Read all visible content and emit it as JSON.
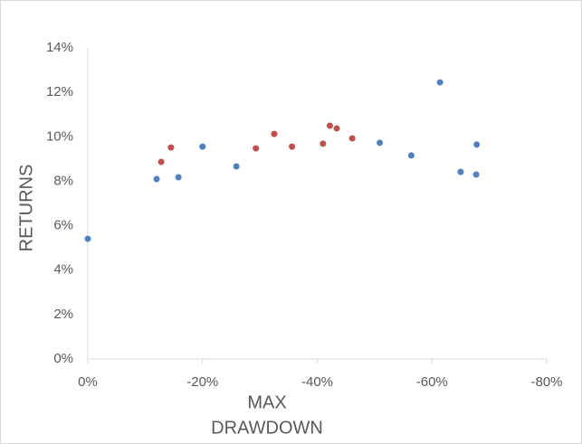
{
  "chart_data": {
    "type": "scatter",
    "x_label": [
      "MAX",
      "DRAWDOWN"
    ],
    "y_label": "RETURNS",
    "xlim": [
      0,
      -80
    ],
    "xticks": [
      {
        "value": 0,
        "label": "0%"
      },
      {
        "value": -20,
        "label": "-20%"
      },
      {
        "value": -40,
        "label": "-40%"
      },
      {
        "value": -60,
        "label": "-60%"
      },
      {
        "value": -80,
        "label": "-80%"
      }
    ],
    "ylim": [
      0,
      14
    ],
    "yticks": [
      {
        "value": 0,
        "label": "0%"
      },
      {
        "value": 2,
        "label": "2%"
      },
      {
        "value": 4,
        "label": "4%"
      },
      {
        "value": 6,
        "label": "6%"
      },
      {
        "value": 8,
        "label": "8%"
      },
      {
        "value": 10,
        "label": "10%"
      },
      {
        "value": 12,
        "label": "12%"
      },
      {
        "value": 14,
        "label": "14%"
      }
    ],
    "grid": false,
    "series": [
      {
        "color": "#4f81bd",
        "x": [
          0,
          -12.0,
          -15.8,
          -20.0,
          -25.9,
          -50.9,
          -56.4,
          -61.4,
          -65.0,
          -67.7,
          -67.8
        ],
        "values": [
          5.41,
          8.1,
          8.18,
          9.56,
          8.67,
          9.73,
          9.16,
          12.45,
          8.42,
          8.3,
          9.65
        ]
      },
      {
        "color": "#c0504d",
        "x": [
          -12.8,
          -14.5,
          -29.3,
          -32.5,
          -35.6,
          -41.0,
          -42.2,
          -43.4,
          -46.1
        ],
        "values": [
          8.87,
          9.52,
          9.48,
          10.13,
          9.56,
          9.69,
          10.5,
          10.38,
          9.93
        ]
      }
    ]
  }
}
